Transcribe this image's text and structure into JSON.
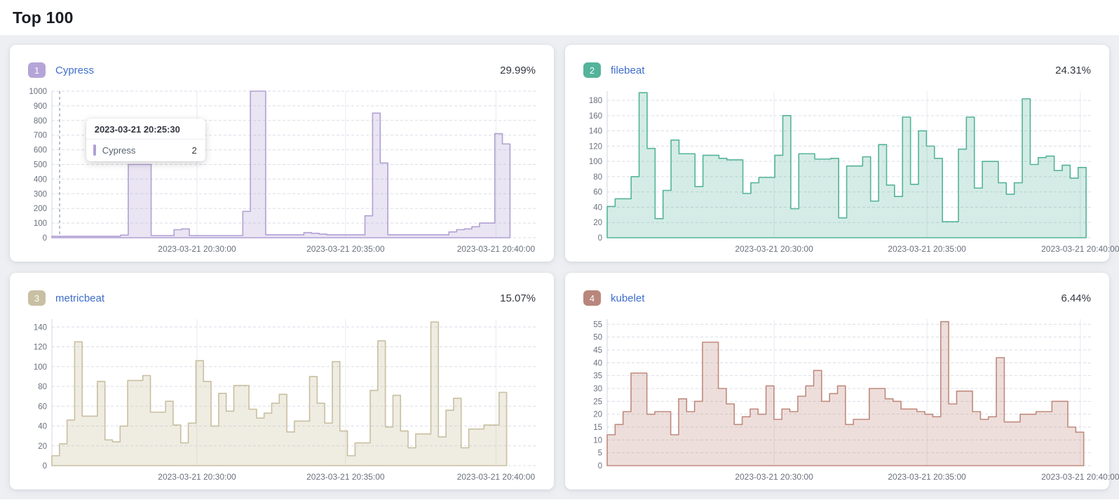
{
  "page": {
    "title": "Top 100",
    "background": "#edeff2"
  },
  "theme": {
    "link_color": "#3f6ecb",
    "percent_color": "#343741",
    "axis_label_color": "#69707d",
    "grid_h_color": "#d9dde8",
    "grid_v_color": "#e7eaf1",
    "axis_line_color": "#d0d5e0",
    "cursor_color": "#8c94a3"
  },
  "chart_data": [
    {
      "type": "area",
      "rank": "1",
      "title": "Cypress",
      "percent": "29.99%",
      "color": "#b1a0d4",
      "badge_color": "#b5a4d8",
      "fill": "rgba(177,160,212,0.28)",
      "ymax": 1000,
      "yticks": [
        0,
        100,
        200,
        300,
        400,
        500,
        600,
        700,
        800,
        900,
        1000
      ],
      "xticks": [
        {
          "f": 0.3,
          "label": "2023-03-21 20:30:00"
        },
        {
          "f": 0.607,
          "label": "2023-03-21 20:35:00"
        },
        {
          "f": 0.918,
          "label": "2023-03-21 20:40:00"
        }
      ],
      "data_end": 0.947,
      "cursor_f": 0.016,
      "values": [
        10,
        10,
        10,
        10,
        10,
        10,
        10,
        10,
        10,
        18,
        500,
        500,
        500,
        15,
        15,
        15,
        55,
        60,
        15,
        15,
        15,
        15,
        15,
        15,
        15,
        180,
        1000,
        1000,
        20,
        20,
        20,
        20,
        20,
        35,
        30,
        25,
        20,
        20,
        20,
        20,
        20,
        150,
        850,
        510,
        20,
        20,
        20,
        20,
        20,
        20,
        20,
        20,
        40,
        55,
        60,
        75,
        100,
        100,
        710,
        640
      ],
      "tooltip": {
        "time": "2023-03-21 20:25:30",
        "series": "Cypress",
        "value": "2"
      }
    },
    {
      "type": "area",
      "rank": "2",
      "title": "filebeat",
      "percent": "24.31%",
      "color": "#54b399",
      "badge_color": "#54b39b",
      "fill": "rgba(84,179,153,0.25)",
      "ymax": 192,
      "yticks": [
        0,
        20,
        40,
        60,
        80,
        100,
        120,
        140,
        160,
        180
      ],
      "xticks": [
        {
          "f": 0.345,
          "label": "2023-03-21 20:30:00"
        },
        {
          "f": 0.661,
          "label": "2023-03-21 20:35:00"
        },
        {
          "f": 0.978,
          "label": "2023-03-21 20:40:00"
        }
      ],
      "data_end": 0.99,
      "cursor_f": null,
      "values": [
        41,
        51,
        51,
        80,
        190,
        117,
        25,
        62,
        128,
        110,
        110,
        67,
        108,
        108,
        104,
        102,
        102,
        58,
        72,
        79,
        79,
        108,
        160,
        38,
        110,
        110,
        103,
        103,
        104,
        26,
        94,
        94,
        106,
        48,
        122,
        69,
        54,
        158,
        70,
        140,
        120,
        104,
        21,
        21,
        116,
        158,
        65,
        100,
        100,
        72,
        57,
        72,
        182,
        96,
        105,
        107,
        88,
        95,
        78,
        92
      ],
      "tooltip": null
    },
    {
      "type": "area",
      "rank": "3",
      "title": "metricbeat",
      "percent": "15.07%",
      "color": "#c9bfa0",
      "badge_color": "#c9bfa2",
      "fill": "rgba(201,191,160,0.30)",
      "ymax": 148,
      "yticks": [
        0,
        20,
        40,
        60,
        80,
        100,
        120,
        140
      ],
      "xticks": [
        {
          "f": 0.3,
          "label": "2023-03-21 20:30:00"
        },
        {
          "f": 0.607,
          "label": "2023-03-21 20:35:00"
        },
        {
          "f": 0.918,
          "label": "2023-03-21 20:40:00"
        }
      ],
      "data_end": 0.94,
      "cursor_f": null,
      "values": [
        10,
        22,
        46,
        125,
        50,
        50,
        85,
        26,
        24,
        40,
        86,
        86,
        91,
        54,
        54,
        65,
        41,
        23,
        43,
        106,
        85,
        40,
        73,
        55,
        81,
        81,
        57,
        48,
        53,
        63,
        72,
        34,
        45,
        45,
        90,
        63,
        43,
        105,
        35,
        10,
        23,
        23,
        76,
        126,
        39,
        71,
        35,
        18,
        32,
        32,
        145,
        29,
        56,
        68,
        18,
        37,
        37,
        41,
        41,
        74
      ],
      "tooltip": null
    },
    {
      "type": "area",
      "rank": "4",
      "title": "kubelet",
      "percent": "6.44%",
      "color": "#c08a7d",
      "badge_color": "#b9867c",
      "fill": "rgba(192,138,125,0.28)",
      "ymax": 57,
      "yticks": [
        0,
        5,
        10,
        15,
        20,
        25,
        30,
        35,
        40,
        45,
        50,
        55
      ],
      "xticks": [
        {
          "f": 0.345,
          "label": "2023-03-21 20:30:00"
        },
        {
          "f": 0.661,
          "label": "2023-03-21 20:35:00"
        },
        {
          "f": 0.978,
          "label": "2023-03-21 20:40:00"
        }
      ],
      "data_end": 0.985,
      "cursor_f": null,
      "values": [
        12,
        16,
        21,
        36,
        36,
        20,
        21,
        21,
        12,
        26,
        21,
        25,
        48,
        48,
        30,
        24,
        16,
        19,
        22,
        20,
        31,
        18,
        22,
        21,
        27,
        31,
        37,
        25,
        28,
        31,
        16,
        18,
        18,
        30,
        30,
        26,
        25,
        22,
        22,
        21,
        20,
        19,
        56,
        24,
        29,
        29,
        21,
        18,
        19,
        42,
        17,
        17,
        20,
        20,
        21,
        21,
        25,
        25,
        15,
        13
      ],
      "tooltip": null
    }
  ]
}
